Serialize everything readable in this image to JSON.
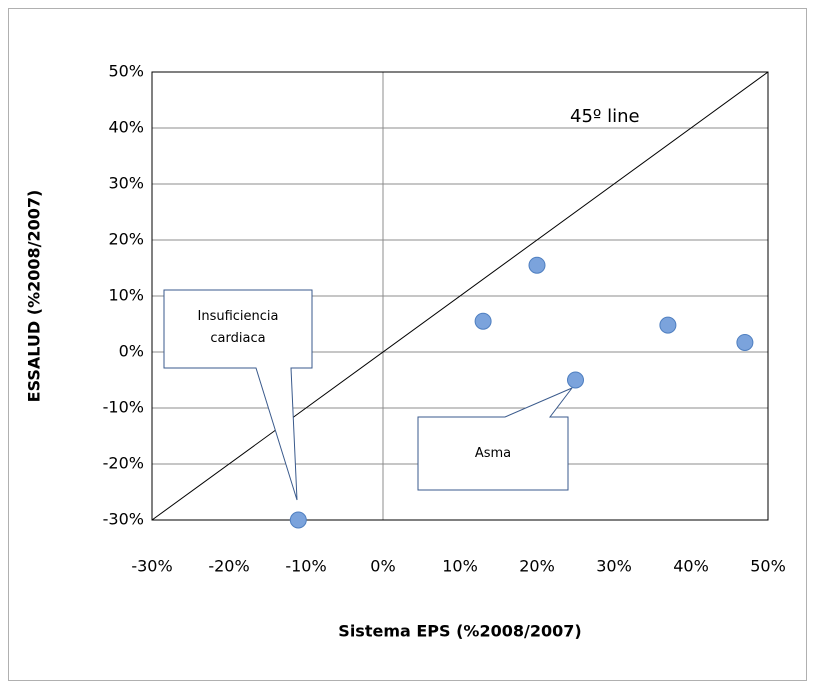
{
  "chart_data": {
    "type": "scatter",
    "xlabel": "Sistema EPS (%2008/2007)",
    "ylabel": "ESSALUD (%2008/2007)",
    "x": [
      -11,
      13,
      20,
      25,
      37,
      47
    ],
    "values": [
      -30,
      5.5,
      15.5,
      -5,
      4.8,
      1.7
    ],
    "color": "#7ba3dc",
    "xlim": [
      -30,
      50
    ],
    "ylim": [
      -30,
      50
    ],
    "xticks": [
      {
        "value": -30,
        "label": "-30%"
      },
      {
        "value": -20,
        "label": "-20%"
      },
      {
        "value": -10,
        "label": "-10%"
      },
      {
        "value": 0,
        "label": "0%"
      },
      {
        "value": 10,
        "label": "10%"
      },
      {
        "value": 20,
        "label": "20%"
      },
      {
        "value": 30,
        "label": "30%"
      },
      {
        "value": 40,
        "label": "40%"
      },
      {
        "value": 50,
        "label": "50%"
      }
    ],
    "yticks": [
      {
        "value": -30,
        "label": "-30%"
      },
      {
        "value": -20,
        "label": "-20%"
      },
      {
        "value": -10,
        "label": "-10%"
      },
      {
        "value": 0,
        "label": "0%"
      },
      {
        "value": 10,
        "label": "10%"
      },
      {
        "value": 20,
        "label": "20%"
      },
      {
        "value": 30,
        "label": "30%"
      },
      {
        "value": 40,
        "label": "40%"
      },
      {
        "value": 50,
        "label": "50%"
      }
    ],
    "grid": true,
    "annotations": [
      "45º line",
      "Insuficiencia cardiaca",
      "Asma"
    ]
  }
}
